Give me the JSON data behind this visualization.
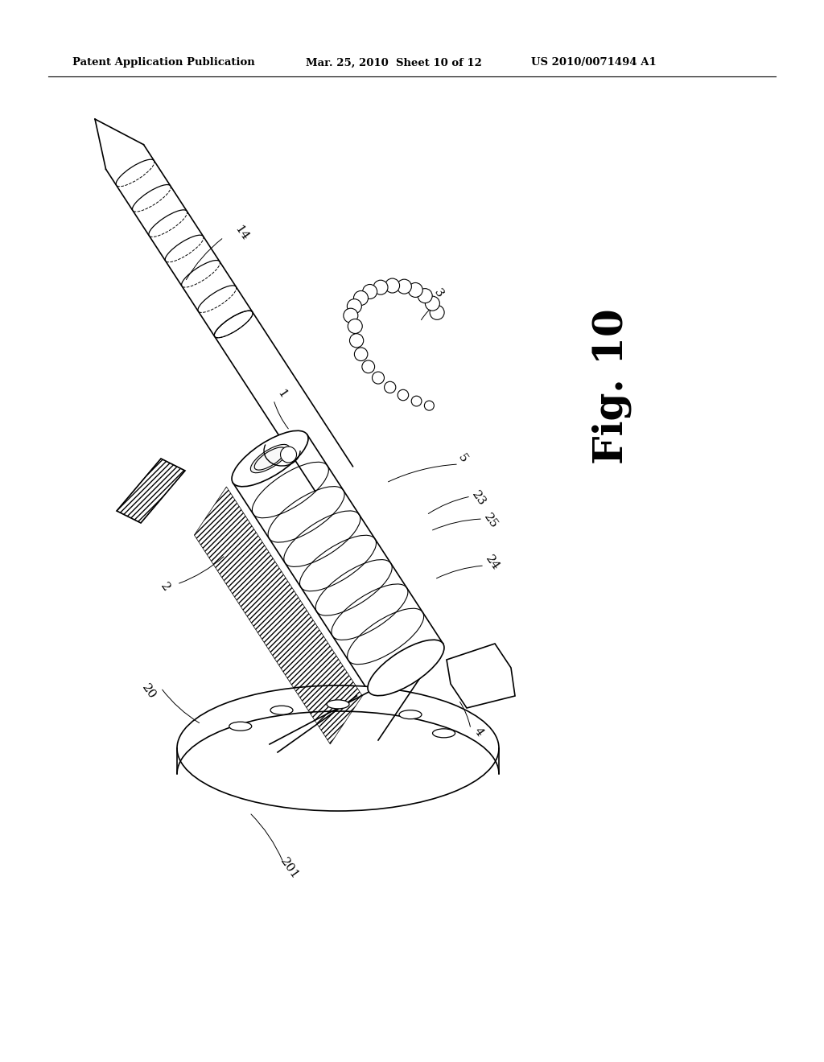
{
  "bg_color": "#ffffff",
  "header_left": "Patent Application Publication",
  "header_center": "Mar. 25, 2010  Sheet 10 of 12",
  "header_right": "US 2010/0071494 A1",
  "fig_label": "Fig. 10",
  "header_fontsize": 9.5,
  "fig_label_fontsize": 36,
  "label_fontsize": 11,
  "line_color": "#000000",
  "draw_lw": 1.2
}
